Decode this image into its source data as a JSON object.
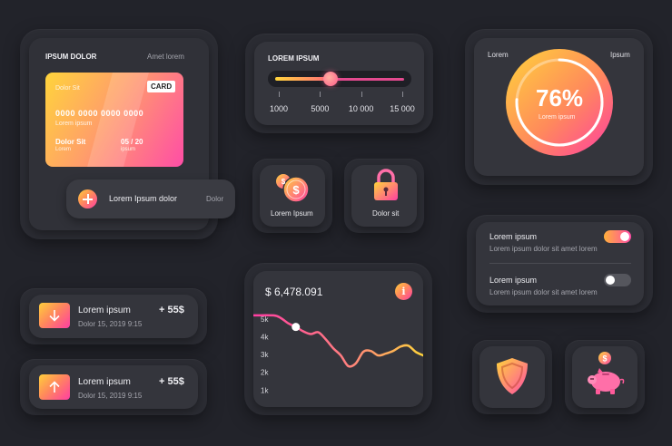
{
  "card_panel": {
    "title": "IPSUM DOLOR",
    "subtitle": "Amet lorem",
    "card": {
      "label_top": "Dolor Sit",
      "badge": "CARD",
      "number": "0000 0000 0000 0000",
      "number_caption": "Lorem ipsum",
      "holder": "Dolor Sit",
      "holder_caption": "Lorem",
      "expiry": "05 / 20",
      "expiry_caption": "ipsum"
    },
    "action": {
      "label": "Lorem Ipsum dolor",
      "side": "Dolor",
      "icon": "plus-icon"
    }
  },
  "slider_panel": {
    "title": "LOREM IPSUM",
    "value_fraction": 0.43,
    "ticks": [
      "1000",
      "5000",
      "10 000",
      "15 000"
    ]
  },
  "gauge_panel": {
    "left_label": "Lorem",
    "right_label": "Ipsum",
    "value_text": "76%",
    "value_fraction": 0.76,
    "caption": "Lorem ipsum"
  },
  "tiles": [
    {
      "label": "Lorem Ipsum",
      "icon": "coins-icon"
    },
    {
      "label": "Dolor sit",
      "icon": "lock-icon"
    }
  ],
  "settings": [
    {
      "title": "Lorem ipsum",
      "desc": "Lorem ipsum dolor sit amet lorem",
      "on": true
    },
    {
      "title": "Lorem ipsum",
      "desc": "Lorem ipsum dolor sit amet lorem",
      "on": false
    }
  ],
  "transactions": [
    {
      "title": "Lorem ipsum",
      "amount": "+ 55$",
      "date": "Dolor 15, 2019 9:15",
      "icon": "arrow-down-icon"
    },
    {
      "title": "Lorem ipsum",
      "amount": "+ 55$",
      "date": "Dolor 15, 2019 9:15",
      "icon": "arrow-up-icon"
    }
  ],
  "chart_data": {
    "type": "area",
    "title": "$ 6,478.091",
    "info_icon": "info-icon",
    "y_ticks": [
      "5k",
      "4k",
      "3k",
      "2k",
      "1k"
    ],
    "ylim": [
      0,
      5.5
    ],
    "x": [
      0,
      1,
      2,
      3,
      4,
      5,
      6,
      7,
      8,
      9,
      10,
      11,
      12,
      13,
      14,
      15,
      16,
      17,
      18,
      19,
      20
    ],
    "values": [
      5.2,
      5.05,
      4.75,
      4.55,
      4.3,
      4.15,
      4.25,
      3.85,
      3.35,
      2.95,
      2.35,
      2.5,
      3.15,
      3.2,
      2.95,
      3.05,
      3.2,
      3.45,
      3.5,
      3.15,
      2.95
    ],
    "highlight_index": 3
  },
  "bottom_icons": [
    {
      "icon": "shield-icon"
    },
    {
      "icon": "piggy-bank-icon"
    }
  ]
}
